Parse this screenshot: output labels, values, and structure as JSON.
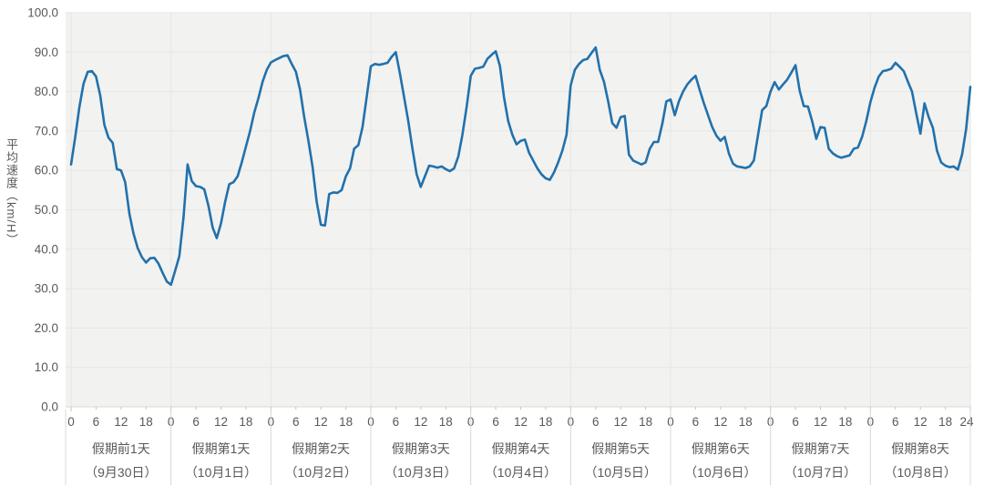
{
  "colors": {
    "background": "#ffffff",
    "plot_bg": "#f2f2f0",
    "grid": "#e6e6e3",
    "axis": "#d8d8d5",
    "tick": "#c4c4c1",
    "text": "#595959",
    "line": "#2271ac"
  },
  "chart_data": {
    "type": "line",
    "title": "",
    "ylabel": "平均速度（km/H）",
    "ylim": [
      0,
      100
    ],
    "y_tick_step": 10,
    "y_tick_format_decimals": 1,
    "grid": true,
    "legend_position": "none",
    "x_hours_per_day": 24,
    "hour_tick_labels": [
      0,
      6,
      12,
      18
    ],
    "end_hour_label": "24",
    "series_name": "平均速度",
    "days": [
      {
        "label": "假期前1天",
        "date": "（9月30日）",
        "hourly_values": [
          61.5,
          68.5,
          76,
          82,
          85,
          85.2,
          83.8,
          79,
          71.5,
          68.3,
          67,
          60.3,
          60,
          57,
          49,
          44,
          40.3,
          38,
          36.6,
          37.7,
          37.8,
          36.3,
          34,
          31.8
        ]
      },
      {
        "label": "假期第1天",
        "date": "（10月1日）",
        "hourly_values": [
          31,
          34.5,
          38.2,
          48,
          61.5,
          57.3,
          56,
          55.8,
          55.2,
          51,
          45.5,
          42.8,
          46.5,
          52,
          56.5,
          57,
          58.5,
          62,
          66,
          70,
          74.7,
          78.3,
          82.5,
          85.5
        ]
      },
      {
        "label": "假期第2天",
        "date": "（10月2日）",
        "hourly_values": [
          87.4,
          88,
          88.5,
          89,
          89.2,
          87,
          85,
          80.5,
          73.5,
          67.5,
          61,
          52,
          46.2,
          46,
          54,
          54.4,
          54.3,
          55,
          58.5,
          60.5,
          65.5,
          66.4,
          71,
          78.5
        ]
      },
      {
        "label": "假期第3天",
        "date": "（10月3日）",
        "hourly_values": [
          86.4,
          87,
          86.8,
          87,
          87.3,
          88.8,
          90,
          84.5,
          78.5,
          72.5,
          65.5,
          59,
          55.8,
          58.5,
          61.2,
          61,
          60.7,
          61,
          60.3,
          59.8,
          60.5,
          63.5,
          69,
          76
        ]
      },
      {
        "label": "假期第4天",
        "date": "（10月4日）",
        "hourly_values": [
          84,
          85.8,
          86,
          86.3,
          88.3,
          89.3,
          90.2,
          86.5,
          78.5,
          72.5,
          69,
          66.6,
          67.5,
          67.8,
          64.5,
          62.5,
          60.5,
          59,
          58,
          57.6,
          59.5,
          62,
          65,
          69
        ]
      },
      {
        "label": "假期第5天",
        "date": "（10月5日）",
        "hourly_values": [
          81.5,
          85.5,
          87,
          88,
          88.3,
          89.8,
          91.2,
          85.5,
          82.5,
          77.5,
          72,
          70.8,
          73.5,
          73.8,
          64,
          62.5,
          62,
          61.5,
          62,
          65.5,
          67.2,
          67.2,
          71.8,
          77.5
        ]
      },
      {
        "label": "假期第6天",
        "date": "（10月6日）",
        "hourly_values": [
          78,
          74,
          77.5,
          80,
          81.8,
          83,
          84,
          80.4,
          77,
          74,
          71,
          68.8,
          67.5,
          68.5,
          64.3,
          61.7,
          61,
          60.8,
          60.6,
          61,
          62.5,
          69,
          75.3,
          76.3
        ]
      },
      {
        "label": "假期第7天",
        "date": "（10月7日）",
        "hourly_values": [
          80,
          82.4,
          80.5,
          81.8,
          83,
          84.8,
          86.7,
          80.2,
          76.3,
          76.2,
          72.5,
          68,
          71,
          70.8,
          65.5,
          64.3,
          63.6,
          63.2,
          63.5,
          63.8,
          65.5,
          65.8,
          68.5,
          72.5
        ]
      },
      {
        "label": "假期第8天",
        "date": "（10月8日）",
        "hourly_values": [
          77.3,
          81,
          83.8,
          85.2,
          85.4,
          85.8,
          87.3,
          86.3,
          85.2,
          82.5,
          80,
          74.5,
          69.3,
          77,
          73.5,
          70.8,
          65,
          62,
          61.2,
          60.8,
          61,
          60.2,
          64,
          70.5
        ]
      }
    ],
    "end_value": 81.2
  }
}
